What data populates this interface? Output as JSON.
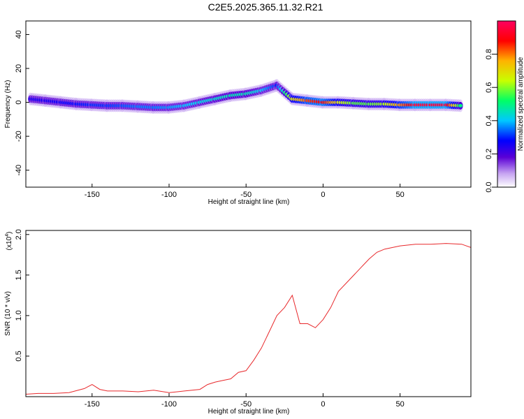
{
  "title": "C2E5.2025.365.11.32.R21",
  "chart_data": [
    {
      "type": "heatmap",
      "xlabel": "Height of straight line (km)",
      "ylabel": "Frequency (Hz)",
      "xlim": [
        -193,
        96
      ],
      "ylim": [
        -50,
        48
      ],
      "xticks": [
        -150,
        -100,
        -50,
        0,
        50
      ],
      "yticks": [
        -40,
        -20,
        0,
        20,
        40
      ],
      "colorbar": {
        "label": "Normalized spectral amplitude",
        "range": [
          0,
          1
        ],
        "ticks": [
          0.0,
          0.2,
          0.4,
          0.6,
          0.8
        ],
        "colors": [
          "#ffffff",
          "#c8a6f2",
          "#5a00d6",
          "#0000ff",
          "#00c8ff",
          "#00ff66",
          "#c8ff00",
          "#ffb300",
          "#ff0000",
          "#ff0060"
        ]
      },
      "ridge": [
        {
          "x": -190,
          "y": 2,
          "amp": 0.3
        },
        {
          "x": -180,
          "y": 1,
          "amp": 0.3
        },
        {
          "x": -170,
          "y": 0,
          "amp": 0.32
        },
        {
          "x": -160,
          "y": -1,
          "amp": 0.34
        },
        {
          "x": -150,
          "y": -1.5,
          "amp": 0.36
        },
        {
          "x": -140,
          "y": -2,
          "amp": 0.36
        },
        {
          "x": -130,
          "y": -2,
          "amp": 0.38
        },
        {
          "x": -120,
          "y": -2.5,
          "amp": 0.4
        },
        {
          "x": -110,
          "y": -3,
          "amp": 0.4
        },
        {
          "x": -100,
          "y": -3,
          "amp": 0.42
        },
        {
          "x": -90,
          "y": -2,
          "amp": 0.44
        },
        {
          "x": -80,
          "y": 0,
          "amp": 0.46
        },
        {
          "x": -70,
          "y": 2,
          "amp": 0.48
        },
        {
          "x": -60,
          "y": 4,
          "amp": 0.5
        },
        {
          "x": -50,
          "y": 5,
          "amp": 0.5
        },
        {
          "x": -40,
          "y": 7,
          "amp": 0.45
        },
        {
          "x": -30,
          "y": 10,
          "amp": 0.35
        },
        {
          "x": -20,
          "y": 2,
          "amp": 0.7
        },
        {
          "x": -10,
          "y": 1,
          "amp": 0.85
        },
        {
          "x": 0,
          "y": 0,
          "amp": 0.9
        },
        {
          "x": 10,
          "y": 0,
          "amp": 0.7
        },
        {
          "x": 20,
          "y": -0.5,
          "amp": 0.6
        },
        {
          "x": 30,
          "y": -1,
          "amp": 0.6
        },
        {
          "x": 40,
          "y": -1,
          "amp": 0.65
        },
        {
          "x": 50,
          "y": -1.5,
          "amp": 0.8
        },
        {
          "x": 60,
          "y": -1.5,
          "amp": 0.95
        },
        {
          "x": 70,
          "y": -1.5,
          "amp": 0.95
        },
        {
          "x": 80,
          "y": -1.5,
          "amp": 0.95
        },
        {
          "x": 90,
          "y": -2,
          "amp": 0.5
        }
      ]
    },
    {
      "type": "line",
      "xlabel": "Height of straight line (km)",
      "ylabel": "SNR (10 * v/v)",
      "yscale_label": "(x10",
      "yscale_exponent": "4",
      "xlim": [
        -193,
        96
      ],
      "ylim": [
        0,
        2.05
      ],
      "xticks": [
        -150,
        -100,
        -50,
        0,
        50
      ],
      "yticks": [
        0.5,
        1.0,
        1.5,
        2.0
      ],
      "ytick_labels": [
        "0.5",
        "1.0",
        "1.5",
        "2.0"
      ],
      "color": "#e8282b",
      "x": [
        -193,
        -185,
        -175,
        -165,
        -155,
        -150,
        -145,
        -140,
        -130,
        -120,
        -110,
        -100,
        -90,
        -80,
        -75,
        -70,
        -65,
        -60,
        -55,
        -50,
        -45,
        -40,
        -35,
        -30,
        -25,
        -20,
        -15,
        -10,
        -5,
        0,
        5,
        10,
        15,
        20,
        25,
        30,
        35,
        40,
        50,
        60,
        70,
        80,
        90,
        96
      ],
      "y": [
        0.03,
        0.04,
        0.04,
        0.05,
        0.1,
        0.15,
        0.09,
        0.07,
        0.07,
        0.06,
        0.08,
        0.05,
        0.07,
        0.09,
        0.15,
        0.18,
        0.2,
        0.22,
        0.3,
        0.32,
        0.45,
        0.6,
        0.8,
        1.0,
        1.1,
        1.25,
        0.9,
        0.9,
        0.85,
        0.95,
        1.1,
        1.3,
        1.4,
        1.5,
        1.6,
        1.7,
        1.78,
        1.82,
        1.86,
        1.88,
        1.88,
        1.89,
        1.88,
        1.84
      ]
    }
  ]
}
